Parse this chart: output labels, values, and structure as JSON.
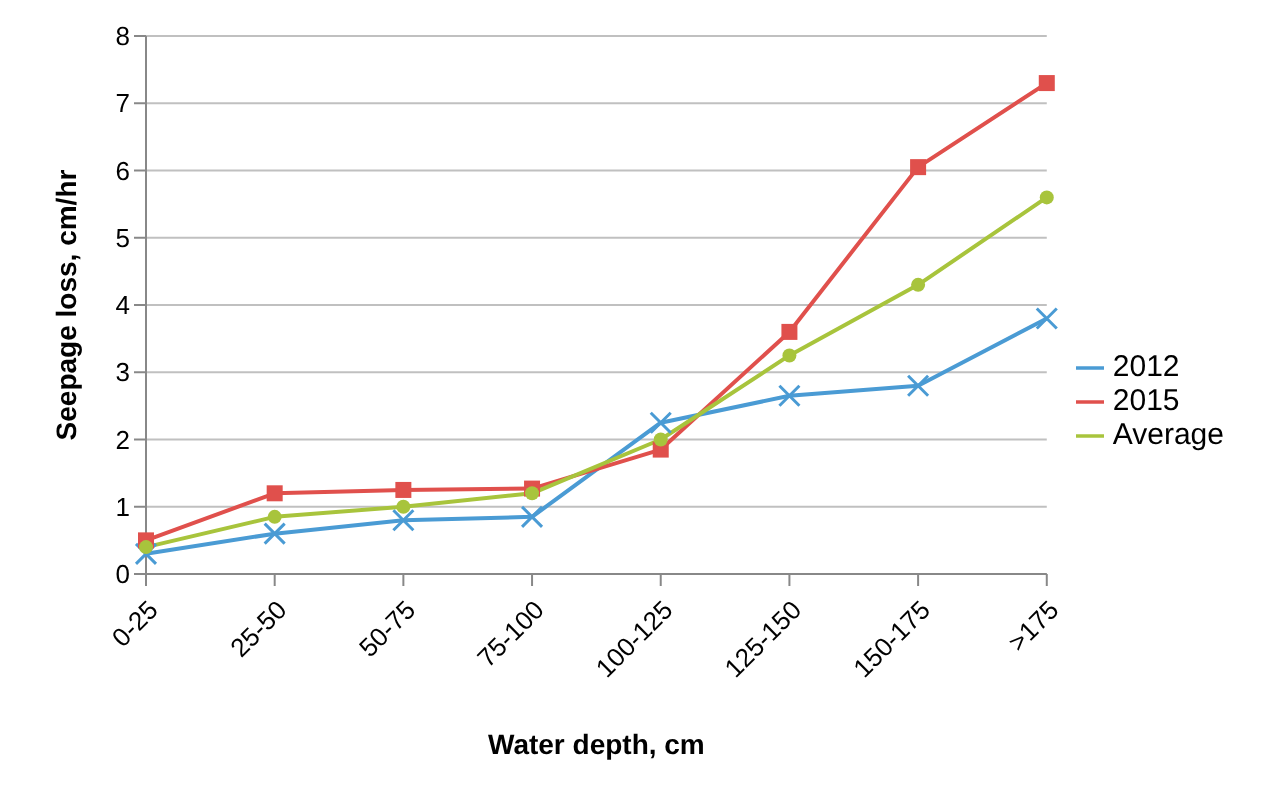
{
  "chart_data": {
    "type": "line",
    "xlabel": "Water depth, cm",
    "ylabel": "Seepage loss, cm/hr",
    "categories": [
      "0-25",
      "25-50",
      "50-75",
      "75-100",
      "100-125",
      "125-150",
      "150-175",
      ">175"
    ],
    "series": [
      {
        "name": "2012",
        "color": "#4a9bd4",
        "marker": "cross",
        "values": [
          0.3,
          0.6,
          0.8,
          0.85,
          2.25,
          2.65,
          2.8,
          3.8
        ]
      },
      {
        "name": "2015",
        "color": "#e0504c",
        "marker": "square",
        "values": [
          0.5,
          1.2,
          1.25,
          1.27,
          1.85,
          3.6,
          6.05,
          7.3
        ]
      },
      {
        "name": "Average",
        "color": "#a8c43c",
        "marker": "circle",
        "values": [
          0.4,
          0.85,
          1.0,
          1.2,
          2.0,
          3.25,
          4.3,
          5.6
        ]
      }
    ],
    "ylim": [
      0,
      8
    ],
    "yticks": [
      0,
      1,
      2,
      3,
      4,
      5,
      6,
      7,
      8
    ],
    "grid": "y",
    "legend": "right",
    "line_style": "solid"
  }
}
